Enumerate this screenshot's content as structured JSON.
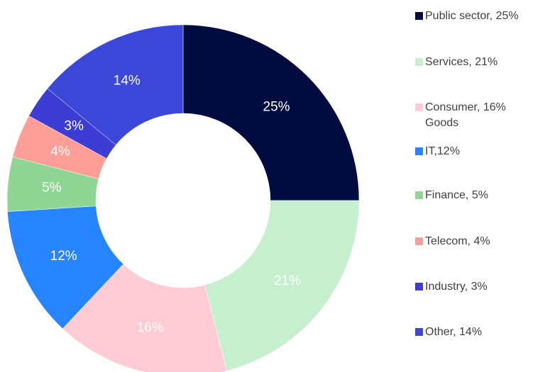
{
  "chart_data": {
    "type": "donut",
    "categories": [
      "Public sector, 25%",
      "Services, 21%",
      "Consumer, 16%\nGoods",
      "IT,12%",
      "Finance, 5%",
      "Telecom, 4%",
      "Industry, 3%",
      "Other, 14%"
    ],
    "values": [
      25,
      21,
      16,
      12,
      5,
      4,
      3,
      14
    ],
    "value_labels": [
      "25%",
      "21%",
      "16%",
      "12%",
      "5%",
      "4%",
      "3%",
      "14%"
    ],
    "colors": [
      "#000c3f",
      "#c6efce",
      "#ffccd5",
      "#2684ff",
      "#8fd694",
      "#ff9e96",
      "#3d3dd6",
      "#3b47d8"
    ],
    "legend": "right"
  }
}
